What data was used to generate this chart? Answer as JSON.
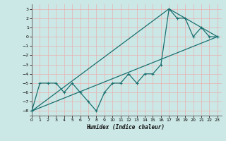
{
  "xlabel": "Humidex (Indice chaleur)",
  "x_values": [
    0,
    1,
    2,
    3,
    4,
    5,
    6,
    7,
    8,
    9,
    10,
    11,
    12,
    13,
    14,
    15,
    16,
    17,
    18,
    19,
    20,
    21,
    22,
    23
  ],
  "line1": [
    -8,
    -5,
    -5,
    -5,
    -6,
    -5,
    -6,
    -7,
    -8,
    -6,
    -5,
    -5,
    -4,
    -5,
    -4,
    -4,
    -3,
    3,
    2,
    2,
    0,
    1,
    0,
    0
  ],
  "line2_x": [
    0,
    23
  ],
  "line2_y": [
    -8,
    0
  ],
  "line3_x": [
    0,
    17,
    23
  ],
  "line3_y": [
    -8,
    3,
    0
  ],
  "bg_color": "#cce8e6",
  "grid_color": "#e8b0b0",
  "line_color": "#1a7070",
  "ylim": [
    -8.5,
    3.5
  ],
  "xlim": [
    -0.3,
    23.5
  ],
  "yticks": [
    3,
    2,
    1,
    0,
    -1,
    -2,
    -3,
    -4,
    -5,
    -6,
    -7,
    -8
  ],
  "xticks": [
    0,
    1,
    2,
    3,
    4,
    5,
    6,
    7,
    8,
    9,
    10,
    11,
    12,
    13,
    14,
    15,
    16,
    17,
    18,
    19,
    20,
    21,
    22,
    23
  ],
  "marker_size": 3.5,
  "linewidth": 0.9
}
